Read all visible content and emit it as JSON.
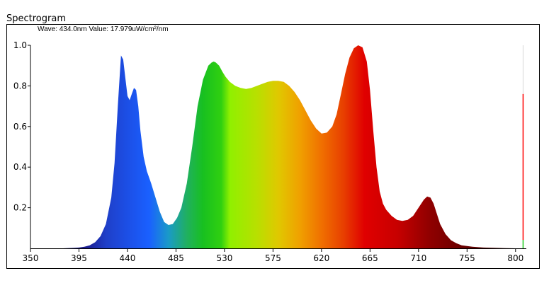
{
  "title": "Spectrogram",
  "readout": {
    "wave_label": "Wave:",
    "wave_value": "434.0nm",
    "value_label": "Value:",
    "value_value": "17.979uW/cm²/nm",
    "text": "Wave: 434.0nm Value: 17.979uW/cm²/nm"
  },
  "chart_data": {
    "type": "area",
    "title": "",
    "xlabel": "",
    "ylabel": "",
    "xlim": [
      350,
      810
    ],
    "ylim": [
      0,
      1.0
    ],
    "x_ticks": [
      350,
      395,
      440,
      485,
      530,
      575,
      620,
      665,
      710,
      755,
      800
    ],
    "y_ticks": [
      0.2,
      0.4,
      0.6,
      0.8,
      1.0
    ],
    "y_tick_labels": [
      "0.2",
      "0.4",
      "0.6",
      "0.8",
      "1.0"
    ],
    "grid": false,
    "fill": "spectral (wavelength-colored)",
    "cursor_marker": {
      "x": 807,
      "y": 0.76,
      "color": "#ff0000"
    },
    "series": [
      {
        "x": [
          380,
          390,
          395,
          400,
          405,
          410,
          415,
          420,
          425,
          428,
          431,
          434,
          436,
          438,
          440,
          442,
          444,
          446,
          448,
          450,
          452,
          455,
          458,
          462,
          466,
          470,
          474,
          478,
          482,
          486,
          490,
          495,
          500,
          505,
          510,
          515,
          518,
          520,
          522,
          525,
          528,
          531,
          535,
          540,
          545,
          550,
          555,
          560,
          565,
          570,
          575,
          580,
          585,
          590,
          595,
          600,
          605,
          610,
          615,
          620,
          625,
          630,
          634,
          638,
          642,
          646,
          650,
          654,
          658,
          662,
          665,
          668,
          671,
          674,
          677,
          680,
          685,
          690,
          695,
          700,
          705,
          710,
          715,
          718,
          721,
          724,
          727,
          730,
          735,
          740,
          745,
          750,
          760,
          770,
          790,
          800
        ],
        "values": [
          0,
          0.002,
          0.004,
          0.008,
          0.015,
          0.03,
          0.06,
          0.12,
          0.25,
          0.42,
          0.7,
          0.95,
          0.93,
          0.84,
          0.75,
          0.73,
          0.76,
          0.79,
          0.78,
          0.7,
          0.58,
          0.45,
          0.38,
          0.32,
          0.25,
          0.18,
          0.13,
          0.115,
          0.12,
          0.15,
          0.2,
          0.32,
          0.5,
          0.7,
          0.83,
          0.9,
          0.915,
          0.92,
          0.915,
          0.9,
          0.87,
          0.845,
          0.82,
          0.8,
          0.79,
          0.785,
          0.79,
          0.8,
          0.81,
          0.82,
          0.825,
          0.825,
          0.82,
          0.8,
          0.77,
          0.73,
          0.68,
          0.63,
          0.59,
          0.565,
          0.57,
          0.6,
          0.66,
          0.76,
          0.86,
          0.94,
          0.985,
          1.0,
          0.99,
          0.92,
          0.78,
          0.58,
          0.4,
          0.28,
          0.22,
          0.19,
          0.16,
          0.14,
          0.135,
          0.14,
          0.16,
          0.2,
          0.24,
          0.255,
          0.25,
          0.22,
          0.17,
          0.12,
          0.07,
          0.04,
          0.025,
          0.015,
          0.008,
          0.004,
          0.001,
          0
        ]
      }
    ]
  }
}
